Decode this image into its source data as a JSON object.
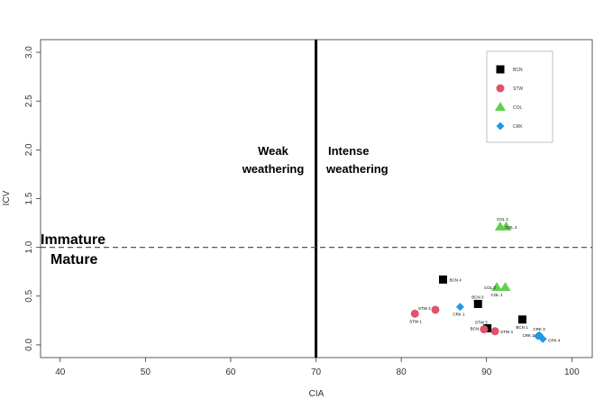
{
  "chart_data": {
    "type": "scatter",
    "xlabel": "CIA",
    "ylabel": "ICV",
    "xlim": [
      37.7,
      102.4
    ],
    "ylim": [
      -0.13,
      3.13
    ],
    "xticks": [
      40,
      50,
      60,
      70,
      80,
      90,
      100
    ],
    "yticks": [
      "0.0",
      "0.5",
      "1.0",
      "1.5",
      "2.0",
      "2.5",
      "3.0"
    ],
    "grid": false,
    "legend_position": "top-right",
    "reference_lines": [
      {
        "orientation": "vertical",
        "value": 70,
        "style": "solid"
      },
      {
        "orientation": "horizontal",
        "value": 1.0,
        "style": "dashed"
      }
    ],
    "annotations": [
      {
        "lines": [
          "Weak",
          "weathering"
        ]
      },
      {
        "lines": [
          "Intense",
          "weathering"
        ]
      },
      {
        "text": "Immature"
      },
      {
        "text": "Mature"
      }
    ],
    "series": [
      {
        "name": "BCN",
        "marker": "square",
        "color": "#000000",
        "points": [
          {
            "label": "BCN 1",
            "x": 94.2,
            "y": 0.26
          },
          {
            "label": "BCN 2",
            "x": 90.1,
            "y": 0.17
          },
          {
            "label": "BCN 3",
            "x": 89.0,
            "y": 0.42
          },
          {
            "label": "BCN 4",
            "x": 84.9,
            "y": 0.67
          }
        ]
      },
      {
        "name": "STW",
        "marker": "circle",
        "color": "#DF536B",
        "points": [
          {
            "label": "STW 1",
            "x": 81.6,
            "y": 0.32
          },
          {
            "label": "STW 2",
            "x": 84.0,
            "y": 0.36
          },
          {
            "label": "STW 3",
            "x": 89.7,
            "y": 0.16
          },
          {
            "label": "STW 4",
            "x": 91.0,
            "y": 0.14
          }
        ]
      },
      {
        "name": "COL",
        "marker": "triangle",
        "color": "#61D04F",
        "points": [
          {
            "label": "COL 1",
            "x": 92.2,
            "y": 0.59
          },
          {
            "label": "COL 2",
            "x": 91.2,
            "y": 0.59
          },
          {
            "label": "COL 3",
            "x": 91.6,
            "y": 1.21
          },
          {
            "label": "COL 4",
            "x": 92.3,
            "y": 1.21
          }
        ]
      },
      {
        "name": "CRK",
        "marker": "diamond",
        "color": "#2297E6",
        "points": [
          {
            "label": "CRK 1",
            "x": 86.9,
            "y": 0.39
          },
          {
            "label": "CRK 2",
            "x": 96.0,
            "y": 0.09
          },
          {
            "label": "CRK 3",
            "x": 96.2,
            "y": 0.1
          },
          {
            "label": "CRK 4",
            "x": 96.6,
            "y": 0.06
          }
        ]
      }
    ]
  }
}
